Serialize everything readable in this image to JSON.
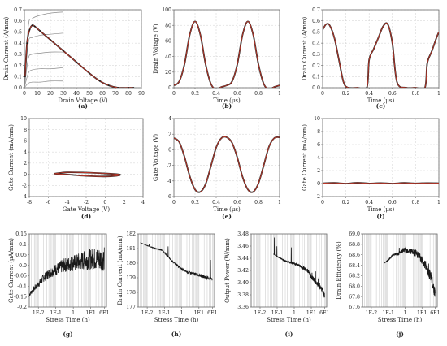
{
  "colors": {
    "measured": "#1a1a1a",
    "model": "#c0392b",
    "iv_curves": "#8c8c8c",
    "grid": "#cfcfcf",
    "frame": "#666666"
  },
  "chart_data": [
    {
      "id": "a",
      "panel_label": "(a)",
      "type": "line",
      "xlabel": "Drain Voltage (V)",
      "ylabel": "Drain Current (A/mm)",
      "xlim": [
        0,
        90
      ],
      "ylim": [
        0,
        0.7
      ],
      "xticks": [
        0,
        10,
        20,
        30,
        40,
        50,
        60,
        70,
        80,
        90
      ],
      "yticks": [
        0.0,
        0.1,
        0.2,
        0.3,
        0.4,
        0.5,
        0.6,
        0.7
      ],
      "series": [
        {
          "role": "iv_curve",
          "x": [
            0,
            3,
            6,
            12,
            20,
            30
          ],
          "y": [
            0,
            0.55,
            0.62,
            0.65,
            0.67,
            0.68
          ]
        },
        {
          "role": "iv_curve",
          "x": [
            0,
            3,
            6,
            12,
            20,
            30
          ],
          "y": [
            0,
            0.4,
            0.45,
            0.47,
            0.48,
            0.49
          ]
        },
        {
          "role": "iv_curve",
          "x": [
            0,
            3,
            6,
            12,
            20,
            30
          ],
          "y": [
            0,
            0.26,
            0.3,
            0.31,
            0.32,
            0.32
          ]
        },
        {
          "role": "iv_curve",
          "x": [
            0,
            3,
            6,
            12,
            20,
            30
          ],
          "y": [
            0,
            0.13,
            0.16,
            0.17,
            0.17,
            0.18
          ]
        },
        {
          "role": "iv_curve",
          "x": [
            0,
            3,
            6,
            12,
            20,
            30
          ],
          "y": [
            0,
            0.04,
            0.05,
            0.05,
            0.06,
            0.06
          ]
        },
        {
          "role": "loadline",
          "x": [
            0.5,
            2,
            4,
            6,
            8,
            12,
            20,
            30,
            40,
            50,
            58,
            65,
            72,
            80,
            84
          ],
          "y": [
            0.1,
            0.4,
            0.52,
            0.56,
            0.55,
            0.51,
            0.43,
            0.33,
            0.23,
            0.13,
            0.06,
            0.02,
            0.0,
            0.0,
            0.0
          ]
        }
      ]
    },
    {
      "id": "b",
      "panel_label": "(b)",
      "type": "line",
      "xlabel": "Time (μs)",
      "ylabel": "Drain Voltage (V)",
      "xlim": [
        0,
        1
      ],
      "ylim": [
        0,
        100
      ],
      "xticks": [
        0.0,
        0.2,
        0.4,
        0.6,
        0.8,
        1.0
      ],
      "yticks": [
        0,
        20,
        40,
        60,
        80,
        100
      ],
      "series": [
        {
          "role": "waveform",
          "x": [
            0,
            0.05,
            0.1,
            0.15,
            0.2,
            0.25,
            0.3,
            0.35,
            0.4,
            0.45,
            0.5,
            0.55,
            0.6,
            0.65,
            0.7,
            0.75,
            0.8,
            0.85,
            0.9,
            0.95,
            1.0
          ],
          "y": [
            3,
            8,
            30,
            68,
            85,
            68,
            30,
            5,
            -2,
            1,
            3,
            8,
            30,
            68,
            85,
            68,
            30,
            5,
            -2,
            1,
            3
          ]
        }
      ]
    },
    {
      "id": "c",
      "panel_label": "(c)",
      "type": "line",
      "xlabel": "Time (μs)",
      "ylabel": "Drain Current (A/mm)",
      "xlim": [
        0,
        1
      ],
      "ylim": [
        0,
        0.7
      ],
      "xticks": [
        0.0,
        0.2,
        0.4,
        0.6,
        0.8,
        1.0
      ],
      "yticks": [
        0.0,
        0.1,
        0.2,
        0.3,
        0.4,
        0.5,
        0.6,
        0.7
      ],
      "series": [
        {
          "role": "waveform",
          "x": [
            0,
            0.03,
            0.06,
            0.1,
            0.14,
            0.18,
            0.22,
            0.3,
            0.38,
            0.4,
            0.44,
            0.48,
            0.52,
            0.56,
            0.6,
            0.64,
            0.72,
            0.8,
            0.88,
            0.9,
            0.94,
            0.98,
            1.0
          ],
          "y": [
            0.52,
            0.57,
            0.56,
            0.45,
            0.25,
            0.05,
            0.0,
            0.0,
            0.0,
            0.25,
            0.35,
            0.45,
            0.55,
            0.57,
            0.4,
            0.05,
            0.0,
            0.0,
            0.0,
            0.22,
            0.33,
            0.45,
            0.5
          ]
        }
      ]
    },
    {
      "id": "d",
      "panel_label": "(d)",
      "type": "line",
      "xlabel": "Gate Voltage (V)",
      "ylabel": "Gate Current (mA/mm)",
      "xlim": [
        -8,
        4
      ],
      "ylim": [
        -4,
        10
      ],
      "xticks": [
        -8,
        -6,
        -4,
        -2,
        0,
        2,
        4
      ],
      "yticks": [
        -4,
        -2,
        0,
        2,
        4,
        6,
        8,
        10
      ],
      "series": [
        {
          "role": "loop",
          "x": [
            -5.4,
            -4,
            -2,
            0,
            1.3,
            1.6,
            1.3,
            0,
            -2,
            -4,
            -5.4
          ],
          "y": [
            0.1,
            0.35,
            0.3,
            0.15,
            0.0,
            -0.1,
            -0.25,
            -0.4,
            -0.3,
            -0.05,
            0.1
          ]
        }
      ]
    },
    {
      "id": "e",
      "panel_label": "(e)",
      "type": "line",
      "xlabel": "Time (μs)",
      "ylabel": "Gate Voltage (V)",
      "xlim": [
        0,
        1
      ],
      "ylim": [
        -6,
        4
      ],
      "xticks": [
        0.0,
        0.2,
        0.4,
        0.6,
        0.8,
        1.0
      ],
      "yticks": [
        -6,
        -4,
        -2,
        0,
        2,
        4
      ],
      "series": [
        {
          "role": "waveform",
          "x": [
            0,
            0.05,
            0.1,
            0.15,
            0.2,
            0.25,
            0.3,
            0.35,
            0.4,
            0.45,
            0.5,
            0.55,
            0.6,
            0.65,
            0.7,
            0.75,
            0.8,
            0.85,
            0.9,
            0.95,
            1.0
          ],
          "y": [
            1.5,
            1.0,
            -0.9,
            -3.4,
            -5.1,
            -5.4,
            -4.4,
            -2.1,
            0.3,
            1.5,
            1.6,
            0.9,
            -1.0,
            -3.5,
            -5.1,
            -5.4,
            -4.3,
            -2.0,
            0.4,
            1.5,
            1.6
          ]
        }
      ]
    },
    {
      "id": "f",
      "panel_label": "(f)",
      "type": "line",
      "xlabel": "Time (μs)",
      "ylabel": "Gate Current (mA/mm)",
      "xlim": [
        0,
        1
      ],
      "ylim": [
        -2,
        10
      ],
      "xticks": [
        0.0,
        0.2,
        0.4,
        0.6,
        0.8,
        1.0
      ],
      "yticks": [
        -2,
        0,
        2,
        4,
        6,
        8,
        10
      ],
      "series": [
        {
          "role": "waveform",
          "x": [
            0,
            0.1,
            0.2,
            0.3,
            0.4,
            0.5,
            0.6,
            0.7,
            0.8,
            0.9,
            1.0
          ],
          "y": [
            0.05,
            0.1,
            0.0,
            0.12,
            0.02,
            0.08,
            0.0,
            0.1,
            0.03,
            0.08,
            0.05
          ]
        }
      ]
    },
    {
      "id": "g",
      "panel_label": "(g)",
      "type": "line",
      "xlabel": "Stress Time (h)",
      "ylabel": "Gate Current (μA/mm)",
      "xscale": "log",
      "xlim": [
        0.003,
        80
      ],
      "ylim": [
        -0.2,
        0.15
      ],
      "xticks": [
        "1E-2",
        "1E-1",
        "1",
        "1E1",
        "6E1"
      ],
      "yticks": [
        -0.2,
        -0.15,
        -0.1,
        -0.05,
        0.0,
        0.05,
        0.1,
        0.15
      ],
      "series": [
        {
          "role": "trace",
          "x": [
            0.003,
            0.006,
            0.01,
            0.02,
            0.04,
            0.1,
            0.3,
            1,
            3,
            10,
            30,
            60
          ],
          "y": [
            -0.14,
            -0.11,
            -0.09,
            -0.06,
            -0.04,
            -0.02,
            0.0,
            0.01,
            0.02,
            0.03,
            0.03,
            0.03
          ]
        }
      ]
    },
    {
      "id": "h",
      "panel_label": "(h)",
      "type": "line",
      "xlabel": "Stress Time (h)",
      "ylabel": "Drain Current (mA/mm)",
      "xscale": "log",
      "xlim": [
        0.003,
        80
      ],
      "ylim": [
        177,
        182
      ],
      "xticks": [
        "1E-2",
        "1E-1",
        "1",
        "1E1",
        "6E1"
      ],
      "yticks": [
        177,
        178,
        179,
        180,
        181,
        182
      ],
      "series": [
        {
          "role": "trace",
          "x": [
            0.004,
            0.01,
            0.03,
            0.07,
            0.15,
            0.3,
            0.6,
            1,
            2,
            4,
            10,
            30,
            60
          ],
          "y": [
            181.4,
            181.2,
            181.0,
            180.9,
            180.5,
            180.1,
            179.8,
            179.6,
            179.4,
            179.3,
            179.2,
            179.0,
            178.9
          ]
        }
      ]
    },
    {
      "id": "i",
      "panel_label": "(i)",
      "type": "line",
      "xlabel": "Stress Time (h)",
      "ylabel": "Output Power (W/mm)",
      "xscale": "log",
      "xlim": [
        0.003,
        80
      ],
      "ylim": [
        3.36,
        3.48
      ],
      "xticks": [
        "1E-2",
        "1E-1",
        "1",
        "1E1",
        "6E1"
      ],
      "yticks": [
        3.36,
        3.38,
        3.4,
        3.42,
        3.44,
        3.46,
        3.48
      ],
      "series": [
        {
          "role": "trace",
          "x": [
            0.06,
            0.1,
            0.2,
            0.4,
            0.8,
            1.5,
            3,
            6,
            10,
            20,
            40,
            60
          ],
          "y": [
            3.447,
            3.443,
            3.438,
            3.434,
            3.432,
            3.43,
            3.425,
            3.42,
            3.41,
            3.4,
            3.39,
            3.378
          ]
        }
      ]
    },
    {
      "id": "j",
      "panel_label": "(j)",
      "type": "line",
      "xlabel": "Stress Time (h)",
      "ylabel": "Drain Efficiency (%)",
      "xscale": "log",
      "xlim": [
        0.003,
        80
      ],
      "ylim": [
        67.6,
        69.0
      ],
      "xticks": [
        "1E-2",
        "1E-1",
        "1",
        "1E1",
        "6E1"
      ],
      "yticks": [
        67.6,
        67.8,
        68.0,
        68.2,
        68.4,
        68.6,
        68.8,
        69.0
      ],
      "series": [
        {
          "role": "trace",
          "x": [
            0.06,
            0.1,
            0.2,
            0.4,
            0.8,
            1.5,
            3,
            6,
            10,
            20,
            40,
            60
          ],
          "y": [
            68.44,
            68.5,
            68.6,
            68.62,
            68.7,
            68.68,
            68.65,
            68.6,
            68.5,
            68.35,
            68.1,
            67.85
          ]
        }
      ]
    }
  ]
}
